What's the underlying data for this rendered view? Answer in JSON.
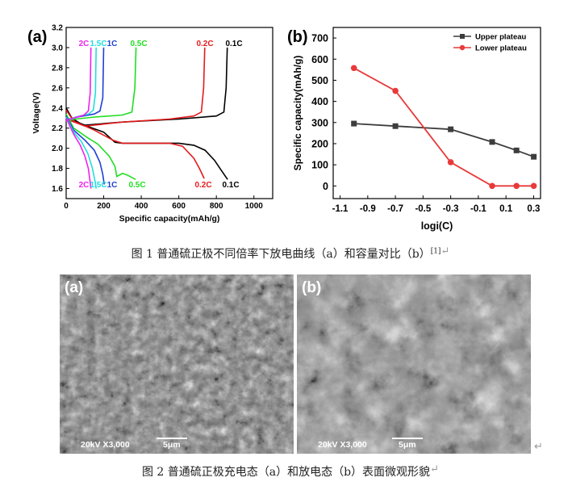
{
  "figure1": {
    "chart_data": [
      {
        "type": "line",
        "panel_label": "(a)",
        "xlabel": "Specific capacity(mAh/g)",
        "ylabel": "Voltage(V)",
        "xlim": [
          0,
          1100
        ],
        "ylim": [
          1.5,
          3.2
        ],
        "xticks": [
          "0",
          "200",
          "400",
          "600",
          "800",
          "1000"
        ],
        "yticks": [
          "1.6",
          "1.8",
          "2.0",
          "2.2",
          "2.4",
          "2.6",
          "2.8",
          "3.0",
          "3.2"
        ],
        "top_labels": [
          "2C",
          "1.5C",
          "1C",
          "0.5C",
          "0.2C",
          "0.1C"
        ],
        "bottom_labels": [
          "2C",
          "1.5C",
          "1C",
          "0.5C",
          "0.2C",
          "0.1C"
        ],
        "series": [
          {
            "name": "0.1C",
            "color": "#000000",
            "discharge": [
              [
                0,
                2.4
              ],
              [
                30,
                2.3
              ],
              [
                80,
                2.24
              ],
              [
                200,
                2.16
              ],
              [
                260,
                2.06
              ],
              [
                300,
                2.05
              ],
              [
                600,
                2.05
              ],
              [
                680,
                2.03
              ],
              [
                740,
                1.98
              ],
              [
                790,
                1.88
              ],
              [
                830,
                1.77
              ],
              [
                860,
                1.69
              ]
            ],
            "charge": [
              [
                0,
                2.3
              ],
              [
                100,
                2.23
              ],
              [
                300,
                2.26
              ],
              [
                600,
                2.29
              ],
              [
                800,
                2.32
              ],
              [
                840,
                2.36
              ],
              [
                852,
                2.6
              ],
              [
                858,
                3.0
              ]
            ]
          },
          {
            "name": "0.2C",
            "color": "#e41a1c",
            "discharge": [
              [
                0,
                2.38
              ],
              [
                40,
                2.27
              ],
              [
                150,
                2.18
              ],
              [
                250,
                2.08
              ],
              [
                300,
                2.05
              ],
              [
                550,
                2.05
              ],
              [
                620,
                2.02
              ],
              [
                680,
                1.9
              ],
              [
                710,
                1.8
              ],
              [
                735,
                1.7
              ]
            ],
            "charge": [
              [
                0,
                2.29
              ],
              [
                100,
                2.22
              ],
              [
                300,
                2.26
              ],
              [
                550,
                2.29
              ],
              [
                680,
                2.32
              ],
              [
                720,
                2.36
              ],
              [
                732,
                2.6
              ],
              [
                738,
                3.0
              ]
            ]
          },
          {
            "name": "0.5C",
            "color": "#22dd22",
            "discharge": [
              [
                0,
                2.34
              ],
              [
                40,
                2.2
              ],
              [
                110,
                2.11
              ],
              [
                170,
                2.04
              ],
              [
                230,
                1.92
              ],
              [
                260,
                1.82
              ],
              [
                270,
                1.72
              ],
              [
                300,
                1.75
              ],
              [
                330,
                1.73
              ],
              [
                370,
                1.69
              ]
            ],
            "charge": [
              [
                0,
                2.27
              ],
              [
                50,
                2.29
              ],
              [
                150,
                2.31
              ],
              [
                300,
                2.33
              ],
              [
                350,
                2.36
              ],
              [
                366,
                2.6
              ],
              [
                372,
                3.0
              ]
            ]
          },
          {
            "name": "1C",
            "color": "#1f3fd6",
            "discharge": [
              [
                0,
                2.32
              ],
              [
                40,
                2.18
              ],
              [
                100,
                2.08
              ],
              [
                150,
                1.98
              ],
              [
                180,
                1.86
              ],
              [
                195,
                1.74
              ],
              [
                203,
                1.64
              ]
            ],
            "charge": [
              [
                0,
                2.28
              ],
              [
                60,
                2.31
              ],
              [
                150,
                2.34
              ],
              [
                180,
                2.37
              ],
              [
                195,
                2.5
              ],
              [
                200,
                3.0
              ]
            ]
          },
          {
            "name": "1.5C",
            "color": "#22dddd",
            "discharge": [
              [
                0,
                2.31
              ],
              [
                40,
                2.16
              ],
              [
                80,
                2.07
              ],
              [
                115,
                1.95
              ],
              [
                140,
                1.8
              ],
              [
                155,
                1.66
              ],
              [
                160,
                1.6
              ]
            ],
            "charge": [
              [
                0,
                2.27
              ],
              [
                50,
                2.31
              ],
              [
                120,
                2.34
              ],
              [
                145,
                2.38
              ],
              [
                156,
                2.55
              ],
              [
                160,
                3.0
              ]
            ]
          },
          {
            "name": "2C",
            "color": "#ee22ee",
            "discharge": [
              [
                0,
                2.3
              ],
              [
                40,
                2.14
              ],
              [
                75,
                2.03
              ],
              [
                100,
                1.92
              ],
              [
                118,
                1.8
              ],
              [
                128,
                1.66
              ],
              [
                132,
                1.6
              ]
            ],
            "charge": [
              [
                0,
                2.27
              ],
              [
                40,
                2.3
              ],
              [
                95,
                2.33
              ],
              [
                118,
                2.37
              ],
              [
                128,
                2.55
              ],
              [
                132,
                3.0
              ]
            ]
          }
        ]
      },
      {
        "type": "line",
        "panel_label": "(b)",
        "xlabel": "logi(C)",
        "ylabel": "Specific capacity(mAh/g)",
        "xlim": [
          -1.15,
          0.35
        ],
        "ylim": [
          -60,
          750
        ],
        "xticks": [
          "-1.1",
          "-0.9",
          "-0.7",
          "-0.5",
          "-0.3",
          "-0.1",
          "0.1",
          "0.3"
        ],
        "yticks": [
          "0",
          "100",
          "200",
          "300",
          "400",
          "500",
          "600",
          "700"
        ],
        "legend": "top-right",
        "series": [
          {
            "name": "Upper plateau",
            "color": "#3d3d3d",
            "x": [
              -1.0,
              -0.7,
              -0.3,
              0.0,
              0.176,
              0.301
            ],
            "y": [
              295,
              283,
              268,
              208,
              168,
              138
            ]
          },
          {
            "name": "Lower plateau",
            "color": "#e83a3a",
            "x": [
              -1.0,
              -0.7,
              -0.3,
              0.0,
              0.176,
              0.301
            ],
            "y": [
              558,
              450,
              112,
              0,
              0,
              0
            ]
          }
        ]
      }
    ],
    "caption": {
      "text": "图 1  普通硫正极不同倍率下放电曲线（a）和容量对比（b）",
      "ref": "[1]"
    }
  },
  "figure2": {
    "panels": [
      {
        "label": "(a)",
        "info": "20kV   X3,000",
        "scale": "5μm"
      },
      {
        "label": "(b)",
        "info": "20kV   X3,000",
        "scale": "5μm"
      }
    ],
    "caption": "图 2  普通硫正极充电态（a）和放电态（b）表面微观形貌"
  }
}
